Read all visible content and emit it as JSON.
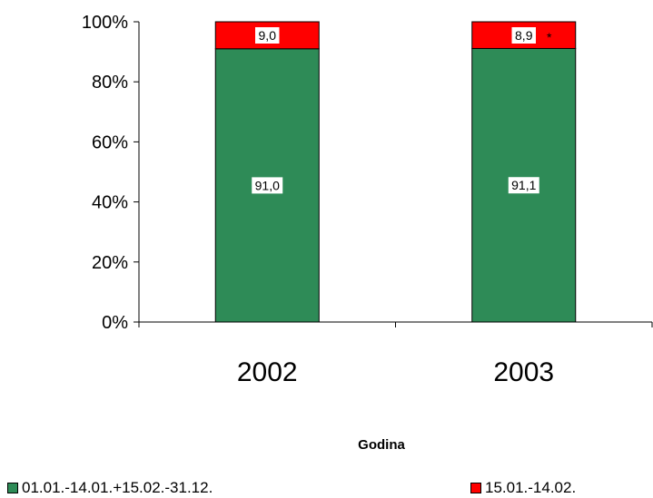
{
  "chart_data": {
    "type": "bar",
    "stacked": true,
    "categories": [
      "2002",
      "2003"
    ],
    "series": [
      {
        "name": "01.01.-14.01.+15.02.-31.12.",
        "values": [
          91.0,
          91.1
        ],
        "labels": [
          "91,0",
          "91,1"
        ],
        "color": "#2e8b57"
      },
      {
        "name": "15.01.-14.02.",
        "values": [
          9.0,
          8.9
        ],
        "labels": [
          "9,0",
          "8,9"
        ],
        "color": "#ff0000"
      }
    ],
    "annotation": "*",
    "xlabel": "Godina",
    "ylabel": "",
    "ylim": [
      0,
      100
    ],
    "yticks": [
      "0%",
      "20%",
      "40%",
      "60%",
      "80%",
      "100%"
    ],
    "grid": false,
    "legend_position": "bottom"
  }
}
